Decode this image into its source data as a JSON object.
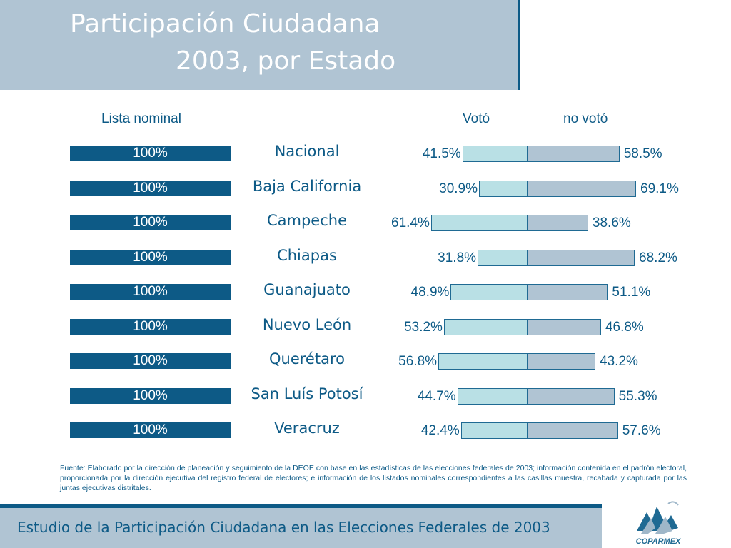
{
  "title": {
    "line1": "Participación Ciudadana",
    "line2": "2003, por Estado"
  },
  "chart_data": {
    "type": "bar",
    "column_headers": {
      "nominal": "Lista nominal",
      "voto": "Votó",
      "no_voto": "no votó"
    },
    "categories": [
      "Nacional",
      "Baja California",
      "Campeche",
      "Chiapas",
      "Guanajuato",
      "Nuevo León",
      "Querétaro",
      "San Luís Potosí",
      "Veracruz"
    ],
    "series": [
      {
        "name": "Lista nominal",
        "values": [
          100,
          100,
          100,
          100,
          100,
          100,
          100,
          100,
          100
        ]
      },
      {
        "name": "Votó",
        "values": [
          41.5,
          30.9,
          61.4,
          31.8,
          48.9,
          53.2,
          56.8,
          44.7,
          42.4
        ]
      },
      {
        "name": "no votó",
        "values": [
          58.5,
          69.1,
          38.6,
          68.2,
          51.1,
          46.8,
          43.2,
          55.3,
          57.6
        ]
      }
    ],
    "labels": {
      "nominal": [
        "100%",
        "100%",
        "100%",
        "100%",
        "100%",
        "100%",
        "100%",
        "100%",
        "100%"
      ],
      "voto": [
        "41.5%",
        "30.9%",
        "61.4%",
        "31.8%",
        "48.9%",
        "53.2%",
        "56.8%",
        "44.7%",
        "42.4%"
      ],
      "no_voto": [
        "58.5%",
        "69.1%",
        "38.6%",
        "68.2%",
        "51.1%",
        "46.8%",
        "43.2%",
        "55.3%",
        "57.6%"
      ]
    },
    "colors": {
      "nominal": "#0d5a86",
      "voto": "#b9e0e5",
      "no_voto": "#b0c4d3"
    }
  },
  "source_note": "Fuente: Elaborado por la dirección de planeación y seguimiento de la DEOE con base en las estadísticas de las elecciones federales de 2003; información contenida en el padrón electoral, proporcionada por la dirección ejecutiva del registro federal de electores; e información de los listados nominales correspondientes a las casillas muestra, recabada y capturada por las juntas ejecutivas distritales.",
  "footer": {
    "text": "Estudio de la Participación Ciudadana en las Elecciones Federales de 2003",
    "logo_text": "COPARMEX"
  }
}
